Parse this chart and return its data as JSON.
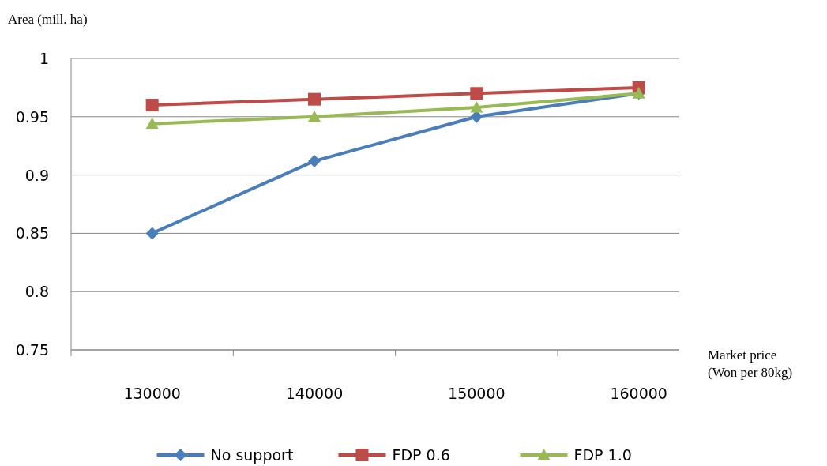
{
  "chart_data": {
    "type": "line",
    "ylabel": "Area (mill. ha)",
    "xlabel": "Market price\n(Won per 80kg)",
    "categories": [
      "130000",
      "140000",
      "150000",
      "160000"
    ],
    "series": [
      {
        "name": "No support",
        "color": "#4a7ebb",
        "marker": "diamond",
        "values": [
          0.85,
          0.912,
          0.95,
          0.97
        ]
      },
      {
        "name": "FDP 0.6",
        "color": "#be4b48",
        "marker": "square",
        "values": [
          0.96,
          0.965,
          0.97,
          0.975
        ]
      },
      {
        "name": "FDP 1.0",
        "color": "#98b954",
        "marker": "triangle",
        "values": [
          0.944,
          0.95,
          0.958,
          0.97
        ]
      }
    ],
    "ylim": [
      0.75,
      1
    ],
    "yticks": [
      0.75,
      0.8,
      0.85,
      0.9,
      0.95,
      1
    ],
    "grid": "y",
    "legend": "bottom"
  }
}
